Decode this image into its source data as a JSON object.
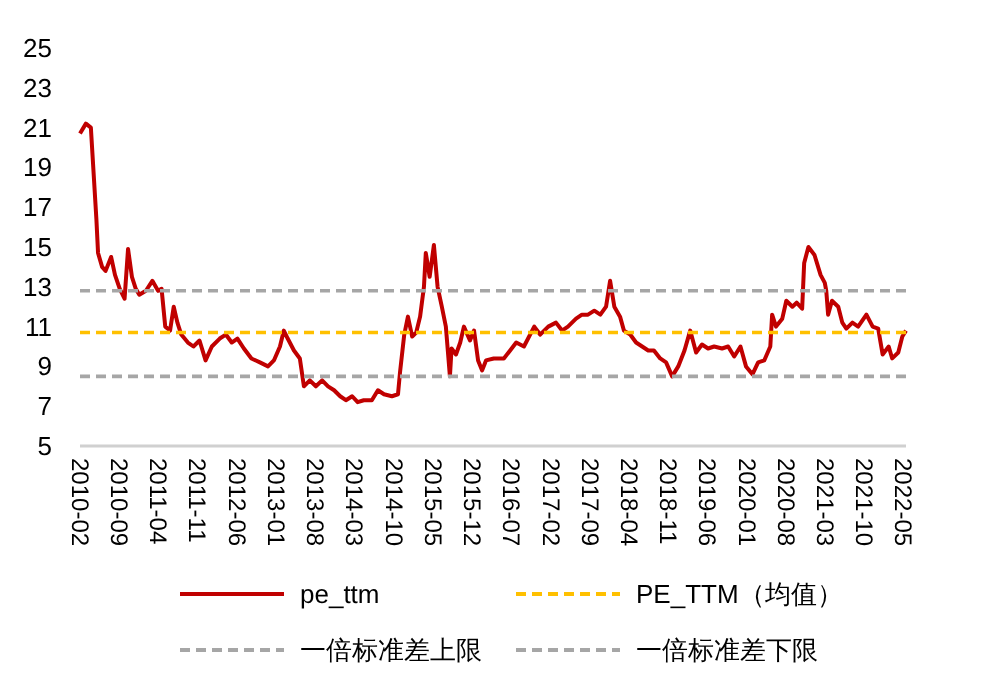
{
  "chart_data": {
    "type": "line",
    "xlim": [
      "2010-02-01",
      "2022-05-15"
    ],
    "xticks": [
      "2010-02",
      "2010-09",
      "2011-04",
      "2011-11",
      "2012-06",
      "2013-01",
      "2013-08",
      "2014-03",
      "2014-10",
      "2015-05",
      "2015-12",
      "2016-07",
      "2017-02",
      "2017-09",
      "2018-04",
      "2018-11",
      "2019-06",
      "2020-01",
      "2020-08",
      "2021-03",
      "2021-10",
      "2022-05"
    ],
    "ylim": [
      5,
      25
    ],
    "yticks": [
      5,
      7,
      9,
      11,
      13,
      15,
      17,
      19,
      21,
      23,
      25
    ],
    "grid": false,
    "legend": "bottom",
    "series": [
      {
        "name": "pe_ttm",
        "color": "#c00000",
        "line_style": "solid",
        "x": [
          "2010-02-01",
          "2010-03-05",
          "2010-04-01",
          "2010-05-01",
          "2010-05-10",
          "2010-06-01",
          "2010-06-20",
          "2010-07-20",
          "2010-08-10",
          "2010-09-05",
          "2010-10-01",
          "2010-10-20",
          "2010-11-10",
          "2010-12-01",
          "2010-12-20",
          "2011-01-25",
          "2011-03-01",
          "2011-04-01",
          "2011-04-20",
          "2011-05-10",
          "2011-06-05",
          "2011-06-25",
          "2011-07-15",
          "2011-08-05",
          "2011-09-10",
          "2011-10-10",
          "2011-11-12",
          "2011-12-15",
          "2012-01-18",
          "2012-03-01",
          "2012-04-03",
          "2012-05-05",
          "2012-06-05",
          "2012-07-10",
          "2012-08-20",
          "2012-10-05",
          "2012-11-18",
          "2012-12-20",
          "2013-01-22",
          "2013-02-12",
          "2013-03-05",
          "2013-04-08",
          "2013-05-10",
          "2013-06-01",
          "2013-07-03",
          "2013-08-05",
          "2013-09-08",
          "2013-10-10",
          "2013-11-12",
          "2013-12-15",
          "2014-01-15",
          "2014-02-18",
          "2014-03-20",
          "2014-04-22",
          "2014-06-05",
          "2014-07-08",
          "2014-08-10",
          "2014-09-22",
          "2014-10-25",
          "2014-11-05",
          "2014-11-28",
          "2014-12-18",
          "2015-01-10",
          "2015-02-01",
          "2015-02-22",
          "2015-03-15",
          "2015-03-25",
          "2015-04-15",
          "2015-05-08",
          "2015-05-28",
          "2015-06-20",
          "2015-07-12",
          "2015-08-03",
          "2015-08-12",
          "2015-09-05",
          "2015-09-28",
          "2015-10-18",
          "2015-11-20",
          "2015-12-12",
          "2016-01-03",
          "2016-01-25",
          "2016-02-15",
          "2016-03-28",
          "2016-05-22",
          "2016-06-25",
          "2016-07-28",
          "2016-09-08",
          "2016-11-03",
          "2016-12-05",
          "2017-01-18",
          "2017-03-01",
          "2017-04-03",
          "2017-05-05",
          "2017-06-18",
          "2017-07-20",
          "2017-08-22",
          "2017-09-25",
          "2017-10-28",
          "2017-11-28",
          "2017-12-20",
          "2018-01-12",
          "2018-02-12",
          "2018-03-05",
          "2018-04-08",
          "2018-05-10",
          "2018-06-12",
          "2018-07-15",
          "2018-08-15",
          "2018-09-18",
          "2018-10-20",
          "2018-11-22",
          "2018-12-25",
          "2019-01-28",
          "2019-02-28",
          "2019-04-01",
          "2019-05-03",
          "2019-06-05",
          "2019-07-08",
          "2019-08-20",
          "2019-09-22",
          "2019-10-25",
          "2019-11-28",
          "2019-12-28",
          "2020-02-01",
          "2020-03-03",
          "2020-04-05",
          "2020-05-08",
          "2020-05-18",
          "2020-06-08",
          "2020-07-12",
          "2020-08-03",
          "2020-09-05",
          "2020-09-28",
          "2020-10-28",
          "2020-11-08",
          "2020-12-01",
          "2021-01-03",
          "2021-02-05",
          "2021-02-28",
          "2021-03-08",
          "2021-03-18",
          "2021-04-08",
          "2021-05-12",
          "2021-06-03",
          "2021-06-25",
          "2021-07-28",
          "2021-08-28",
          "2021-10-12",
          "2021-11-15",
          "2021-12-15",
          "2022-01-08",
          "2022-02-10",
          "2022-03-01",
          "2022-04-03",
          "2022-04-25",
          "2022-05-15"
        ],
        "values": [
          20.7,
          21.2,
          21.0,
          16.4,
          14.7,
          14.0,
          13.8,
          14.5,
          13.6,
          12.9,
          12.4,
          14.9,
          13.5,
          12.9,
          12.6,
          12.8,
          13.3,
          12.8,
          12.9,
          11.0,
          10.8,
          12.0,
          11.2,
          10.6,
          10.2,
          10.0,
          10.3,
          9.3,
          10.0,
          10.4,
          10.6,
          10.2,
          10.4,
          9.9,
          9.4,
          9.2,
          9.0,
          9.3,
          10.0,
          10.8,
          10.4,
          9.8,
          9.4,
          8.0,
          8.3,
          8.0,
          8.3,
          8.0,
          7.8,
          7.5,
          7.3,
          7.5,
          7.2,
          7.3,
          7.3,
          7.8,
          7.6,
          7.5,
          7.6,
          8.7,
          10.6,
          11.5,
          10.5,
          10.7,
          11.5,
          13.0,
          14.7,
          13.5,
          15.1,
          13.0,
          12.0,
          11.0,
          8.5,
          9.9,
          9.6,
          10.2,
          11.0,
          10.3,
          10.8,
          9.3,
          8.8,
          9.3,
          9.4,
          9.4,
          9.8,
          10.2,
          10.0,
          11.0,
          10.6,
          11.0,
          11.2,
          10.8,
          11.0,
          11.4,
          11.6,
          11.6,
          11.8,
          11.6,
          12.0,
          13.3,
          12.0,
          11.5,
          10.8,
          10.6,
          10.2,
          10.0,
          9.8,
          9.8,
          9.4,
          9.2,
          8.5,
          9.0,
          9.8,
          10.8,
          9.7,
          10.1,
          9.9,
          10.0,
          9.9,
          10.0,
          9.5,
          10.0,
          9.0,
          8.6,
          9.2,
          9.3,
          10.0,
          11.6,
          11.0,
          11.4,
          12.3,
          12.0,
          12.2,
          11.9,
          14.2,
          15.0,
          14.6,
          13.6,
          13.2,
          12.8,
          11.6,
          12.3,
          12.0,
          11.2,
          10.9,
          11.2,
          11.0,
          11.6,
          11.0,
          10.9,
          9.6,
          10.0,
          9.4,
          9.7,
          10.5,
          10.8
        ]
      },
      {
        "name": "PE_TTM（均值）",
        "color": "#ffc000",
        "line_style": "dashed",
        "x": [
          "2010-02-01",
          "2022-05-15"
        ],
        "values": [
          10.7,
          10.7
        ]
      },
      {
        "name": "一倍标准差上限",
        "color": "#a6a6a6",
        "line_style": "dashed",
        "x": [
          "2010-02-01",
          "2022-05-15"
        ],
        "values": [
          12.8,
          12.8
        ]
      },
      {
        "name": "一倍标准差下限",
        "color": "#a6a6a6",
        "line_style": "dashed",
        "x": [
          "2010-02-01",
          "2022-05-15"
        ],
        "values": [
          8.5,
          8.5
        ]
      }
    ]
  }
}
